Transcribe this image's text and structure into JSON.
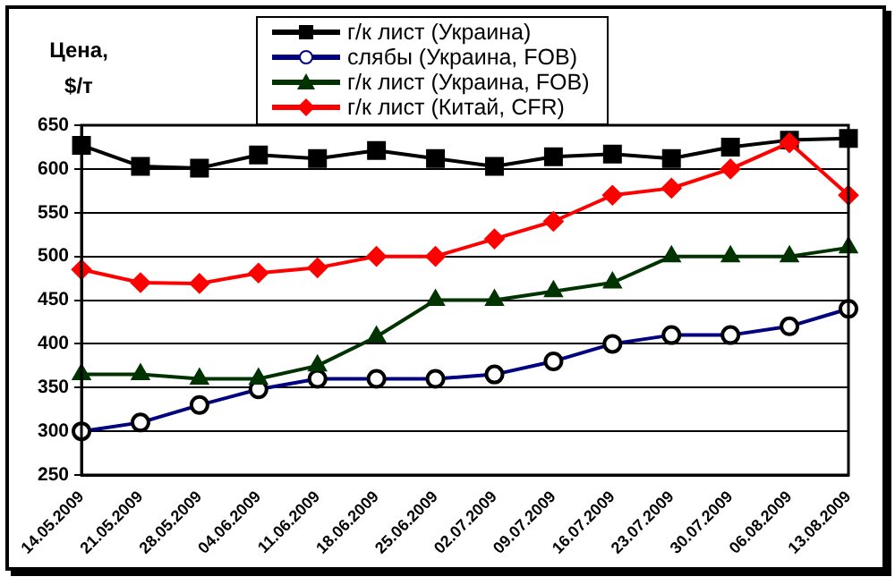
{
  "chart_data": {
    "type": "line",
    "ylabel": "Цена, $/т",
    "categories": [
      "14.05.2009",
      "21.05.2009",
      "28.05.2009",
      "04.06.2009",
      "11.06.2009",
      "18.06.2009",
      "25.06.2009",
      "02.07.2009",
      "09.07.2009",
      "16.07.2009",
      "23.07.2009",
      "30.07.2009",
      "06.08.2009",
      "13.08.2009"
    ],
    "series": [
      {
        "name": "г/к лист (Украина)",
        "color": "#000000",
        "marker": "square",
        "values": [
          627,
          603,
          601,
          616,
          612,
          621,
          612,
          603,
          614,
          617,
          612,
          625,
          633,
          635
        ]
      },
      {
        "name": "слябы (Украина, FOB)",
        "color": "#000080",
        "marker": "circle",
        "values": [
          300,
          310,
          330,
          348,
          360,
          360,
          360,
          365,
          380,
          400,
          410,
          410,
          420,
          440
        ]
      },
      {
        "name": "г/к лист (Украина, FOB)",
        "color": "#003300",
        "marker": "triangle",
        "values": [
          365,
          365,
          360,
          360,
          375,
          408,
          450,
          450,
          460,
          470,
          500,
          500,
          500,
          510
        ]
      },
      {
        "name": "г/к лист (Китай, CFR)",
        "color": "#ff0000",
        "marker": "diamond",
        "values": [
          485,
          470,
          469,
          481,
          487,
          500,
          500,
          520,
          540,
          570,
          578,
          600,
          630,
          570
        ]
      }
    ],
    "ylim": [
      250,
      650
    ],
    "yticks": [
      250,
      300,
      350,
      400,
      450,
      500,
      550,
      600,
      650
    ],
    "grid": "y",
    "legend": "top",
    "line_style": "solid"
  }
}
